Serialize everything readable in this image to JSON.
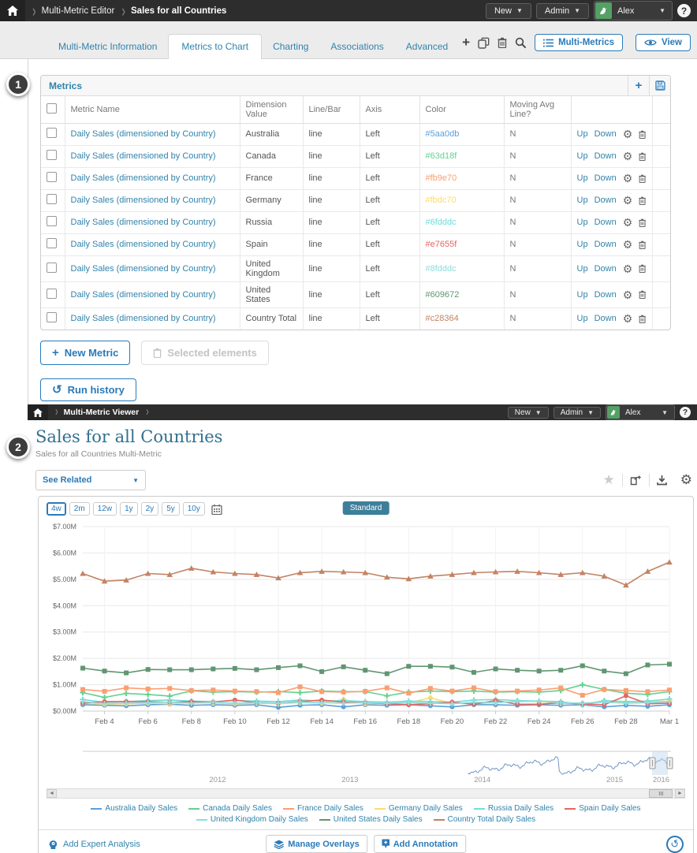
{
  "colors": {
    "accent_blue": "#2a7ab9",
    "link_blue": "#3183ab",
    "title_teal": "#31708f",
    "topbar_dark": "#2d2d2d",
    "avatar_green": "#54a065",
    "standard_btn": "#3d7e9a"
  },
  "badges": [
    "1",
    "2"
  ],
  "editor": {
    "breadcrumb": [
      "Multi-Metric Editor",
      "Sales for all Countries"
    ],
    "topbar": {
      "new_label": "New",
      "admin_label": "Admin",
      "user_name": "Alex",
      "help_label": "?"
    },
    "tabs": [
      {
        "label": "Multi-Metric Information",
        "active": false
      },
      {
        "label": "Metrics to Chart",
        "active": true
      },
      {
        "label": "Charting",
        "active": false
      },
      {
        "label": "Associations",
        "active": false
      },
      {
        "label": "Advanced",
        "active": false
      }
    ],
    "toolbar": {
      "plus_icon": "plus",
      "copy_icon": "copy",
      "trash_icon": "trash",
      "search_icon": "search",
      "multi_metrics_label": "Multi-Metrics",
      "view_label": "View"
    },
    "panel": {
      "title": "Metrics",
      "columns": [
        "Metric Name",
        "Dimension Value",
        "Line/Bar",
        "Axis",
        "Color",
        "Moving Avg Line?"
      ],
      "row_actions": {
        "up": "Up",
        "down": "Down"
      },
      "rows": [
        {
          "name": "Daily Sales (dimensioned by Country)",
          "dimension": "Australia",
          "line_bar": "line",
          "axis": "Left",
          "color": "#5aa0db",
          "moving_avg": "N"
        },
        {
          "name": "Daily Sales (dimensioned by Country)",
          "dimension": "Canada",
          "line_bar": "line",
          "axis": "Left",
          "color": "#63d18f",
          "moving_avg": "N"
        },
        {
          "name": "Daily Sales (dimensioned by Country)",
          "dimension": "France",
          "line_bar": "line",
          "axis": "Left",
          "color": "#fb9e70",
          "moving_avg": "N"
        },
        {
          "name": "Daily Sales (dimensioned by Country)",
          "dimension": "Germany",
          "line_bar": "line",
          "axis": "Left",
          "color": "#fbdc70",
          "moving_avg": "N"
        },
        {
          "name": "Daily Sales (dimensioned by Country)",
          "dimension": "Russia",
          "line_bar": "line",
          "axis": "Left",
          "color": "#6fdddc",
          "moving_avg": "N"
        },
        {
          "name": "Daily Sales (dimensioned by Country)",
          "dimension": "Spain",
          "line_bar": "line",
          "axis": "Left",
          "color": "#e7655f",
          "moving_avg": "N"
        },
        {
          "name": "Daily Sales (dimensioned by Country)",
          "dimension": "United Kingdom",
          "line_bar": "line",
          "axis": "Left",
          "color": "#8fdddc",
          "moving_avg": "N"
        },
        {
          "name": "Daily Sales (dimensioned by Country)",
          "dimension": "United States",
          "line_bar": "line",
          "axis": "Left",
          "color": "#609672",
          "moving_avg": "N"
        },
        {
          "name": "Daily Sales (dimensioned by Country)",
          "dimension": "Country Total",
          "line_bar": "line",
          "axis": "Left",
          "color": "#c28364",
          "moving_avg": "N"
        }
      ]
    },
    "buttons": {
      "new_metric": "New Metric",
      "selected_elements": "Selected elements",
      "run_history": "Run history"
    }
  },
  "viewer": {
    "breadcrumb": [
      "Multi-Metric Viewer"
    ],
    "topbar": {
      "new_label": "New",
      "admin_label": "Admin",
      "user_name": "Alex",
      "help_label": "?"
    },
    "title": "Sales for all Countries",
    "subtitle": "Sales for all Countries Multi-Metric",
    "see_related_label": "See Related",
    "ranges": [
      "4w",
      "2m",
      "12w",
      "1y",
      "2y",
      "5y",
      "10y"
    ],
    "active_range": "4w",
    "standard_label": "Standard",
    "footer": {
      "add_expert": "Add Expert Analysis",
      "manage_overlays": "Manage Overlays",
      "add_annotation": "Add Annotation"
    }
  },
  "chart_data": {
    "type": "line",
    "ylim": [
      0,
      7
    ],
    "y_tick_labels": [
      "$0.00M",
      "$1.00M",
      "$2.00M",
      "$3.00M",
      "$4.00M",
      "$5.00M",
      "$6.00M",
      "$7.00M"
    ],
    "x_tick_labels": [
      "Feb 4",
      "Feb 6",
      "Feb 8",
      "Feb 10",
      "Feb 12",
      "Feb 14",
      "Feb 16",
      "Feb 18",
      "Feb 20",
      "Feb 22",
      "Feb 24",
      "Feb 26",
      "Feb 28",
      "Mar 1"
    ],
    "tick_indices": [
      1,
      3,
      5,
      7,
      9,
      11,
      13,
      15,
      17,
      19,
      21,
      23,
      25,
      27
    ],
    "grid": true,
    "legend_position": "bottom",
    "series": [
      {
        "name": "Australia Daily Sales",
        "color": "#5aa0db",
        "marker": "circle",
        "values": [
          0.24,
          0.22,
          0.2,
          0.24,
          0.26,
          0.22,
          0.24,
          0.22,
          0.24,
          0.14,
          0.22,
          0.24,
          0.16,
          0.24,
          0.22,
          0.24,
          0.2,
          0.16,
          0.24,
          0.24,
          0.22,
          0.24,
          0.22,
          0.24,
          0.16,
          0.22,
          0.18,
          0.24
        ]
      },
      {
        "name": "Canada Daily Sales",
        "color": "#63d18f",
        "marker": "plus",
        "values": [
          0.7,
          0.52,
          0.67,
          0.63,
          0.57,
          0.77,
          0.72,
          0.74,
          0.72,
          0.74,
          0.7,
          0.76,
          0.74,
          0.74,
          0.58,
          0.72,
          0.76,
          0.74,
          0.76,
          0.72,
          0.74,
          0.72,
          0.78,
          1.0,
          0.82,
          0.68,
          0.63,
          0.74
        ]
      },
      {
        "name": "France Daily Sales",
        "color": "#fb9e70",
        "marker": "square",
        "values": [
          0.82,
          0.75,
          0.88,
          0.84,
          0.86,
          0.78,
          0.8,
          0.76,
          0.74,
          0.7,
          0.92,
          0.74,
          0.72,
          0.75,
          0.88,
          0.68,
          0.86,
          0.76,
          0.88,
          0.74,
          0.76,
          0.8,
          0.88,
          0.6,
          0.82,
          0.78,
          0.74,
          0.8
        ]
      },
      {
        "name": "Germany Daily Sales",
        "color": "#fbdc70",
        "marker": "diamond",
        "values": [
          0.3,
          0.26,
          0.28,
          0.3,
          0.28,
          0.32,
          0.3,
          0.28,
          0.3,
          0.28,
          0.32,
          0.3,
          0.44,
          0.28,
          0.3,
          0.32,
          0.5,
          0.3,
          0.28,
          0.32,
          0.38,
          0.36,
          0.3,
          0.28,
          0.38,
          0.34,
          0.36,
          0.38
        ]
      },
      {
        "name": "Russia Daily Sales",
        "color": "#6fdddc",
        "marker": "plus",
        "values": [
          0.44,
          0.33,
          0.36,
          0.4,
          0.42,
          0.38,
          0.36,
          0.4,
          0.38,
          0.36,
          0.42,
          0.38,
          0.4,
          0.36,
          0.34,
          0.38,
          0.36,
          0.34,
          0.42,
          0.44,
          0.4,
          0.38,
          0.36,
          0.24,
          0.4,
          0.36,
          0.38,
          0.46
        ]
      },
      {
        "name": "Spain Daily Sales",
        "color": "#e7655f",
        "marker": "circle",
        "values": [
          0.3,
          0.36,
          0.36,
          0.36,
          0.33,
          0.36,
          0.34,
          0.42,
          0.32,
          0.3,
          0.36,
          0.42,
          0.34,
          0.32,
          0.28,
          0.24,
          0.28,
          0.34,
          0.26,
          0.4,
          0.26,
          0.26,
          0.32,
          0.28,
          0.24,
          0.58,
          0.28,
          0.3
        ]
      },
      {
        "name": "United Kingdom Daily Sales",
        "color": "#8fdddc",
        "marker": "plus",
        "values": [
          0.36,
          0.28,
          0.3,
          0.32,
          0.34,
          0.3,
          0.34,
          0.3,
          0.32,
          0.3,
          0.34,
          0.32,
          0.3,
          0.32,
          0.3,
          0.32,
          0.3,
          0.28,
          0.34,
          0.32,
          0.36,
          0.38,
          0.32,
          0.3,
          0.34,
          0.3,
          0.32,
          0.36
        ]
      },
      {
        "name": "United States Daily Sales",
        "color": "#609672",
        "marker": "square",
        "values": [
          1.63,
          1.52,
          1.45,
          1.58,
          1.57,
          1.57,
          1.6,
          1.62,
          1.57,
          1.65,
          1.72,
          1.5,
          1.68,
          1.55,
          1.42,
          1.7,
          1.7,
          1.67,
          1.47,
          1.6,
          1.55,
          1.52,
          1.55,
          1.72,
          1.52,
          1.42,
          1.75,
          1.78
        ]
      },
      {
        "name": "Country Total Daily Sales",
        "color": "#c28364",
        "marker": "triangle",
        "values": [
          5.22,
          4.93,
          4.97,
          5.22,
          5.18,
          5.42,
          5.28,
          5.22,
          5.18,
          5.05,
          5.25,
          5.3,
          5.28,
          5.25,
          5.08,
          5.02,
          5.12,
          5.18,
          5.25,
          5.28,
          5.3,
          5.25,
          5.18,
          5.25,
          5.12,
          4.78,
          5.3,
          5.65
        ]
      }
    ],
    "navigator": {
      "year_labels": [
        "2012",
        "2013",
        "2014",
        "2015",
        "2016"
      ]
    }
  }
}
